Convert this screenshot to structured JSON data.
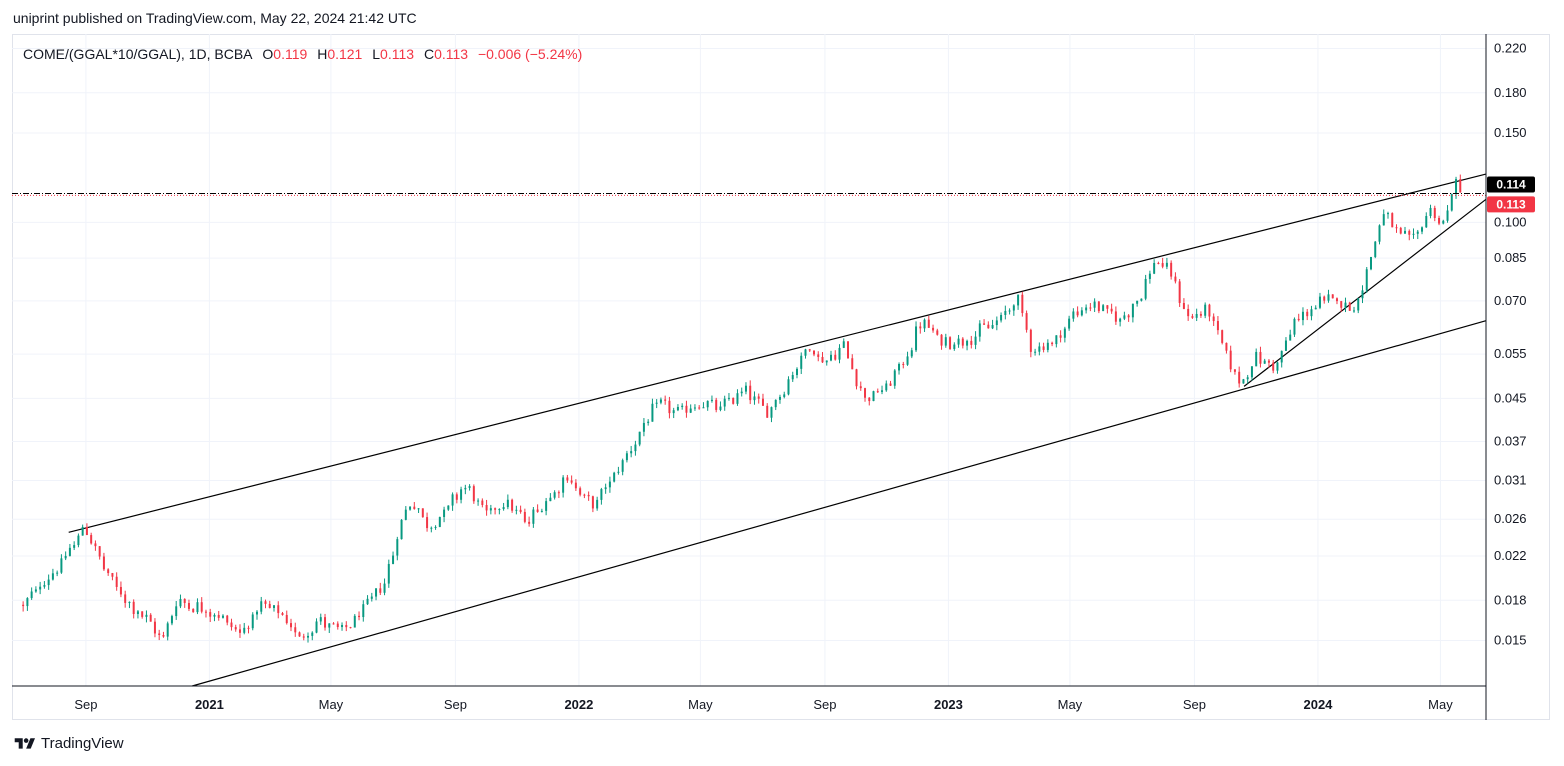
{
  "header": {
    "text": "uniprint published on TradingView.com, May 22, 2024 21:42 UTC"
  },
  "legend": {
    "symbol": "COME/(GGAL*10/GGAL), 1D, BCBA",
    "o_label": "O",
    "o_value": "0.119",
    "h_label": "H",
    "h_value": "0.121",
    "l_label": "L",
    "l_value": "0.113",
    "c_label": "C",
    "c_value": "0.113",
    "change": "−0.006 (−5.24%)"
  },
  "footer": {
    "brand": "TradingView"
  },
  "colors": {
    "up": "#089981",
    "down": "#f23645",
    "grid": "#f0f3fa",
    "line": "#000000"
  },
  "chart_data": {
    "type": "candlestick",
    "y_scale": "log",
    "ylim": [
      0.0122,
      0.235
    ],
    "y_ticks": [
      0.015,
      0.018,
      0.022,
      0.026,
      0.031,
      0.037,
      0.045,
      0.055,
      0.07,
      0.085,
      0.1,
      0.15,
      0.18,
      0.22
    ],
    "y_tick_labels": [
      "0.015",
      "0.018",
      "0.022",
      "0.026",
      "0.031",
      "0.037",
      "0.045",
      "0.055",
      "0.070",
      "0.085",
      "0.100",
      "0.150",
      "0.180",
      "0.220"
    ],
    "x_range": [
      "2020-06-20",
      "2024-06-15"
    ],
    "x_ticks": [
      {
        "label": "Sep",
        "date": "2020-09-01",
        "year": false
      },
      {
        "label": "2021",
        "date": "2021-01-01",
        "year": true
      },
      {
        "label": "May",
        "date": "2021-05-01",
        "year": false
      },
      {
        "label": "Sep",
        "date": "2021-09-01",
        "year": false
      },
      {
        "label": "2022",
        "date": "2022-01-01",
        "year": true
      },
      {
        "label": "May",
        "date": "2022-05-01",
        "year": false
      },
      {
        "label": "Sep",
        "date": "2022-09-01",
        "year": false
      },
      {
        "label": "2023",
        "date": "2023-01-01",
        "year": true
      },
      {
        "label": "May",
        "date": "2023-05-01",
        "year": false
      },
      {
        "label": "Sep",
        "date": "2023-09-01",
        "year": false
      },
      {
        "label": "2024",
        "date": "2024-01-01",
        "year": true
      },
      {
        "label": "May",
        "date": "2024-05-01",
        "year": false
      }
    ],
    "price_path": [
      [
        "2020-07-01",
        0.0175
      ],
      [
        "2020-07-20",
        0.0195
      ],
      [
        "2020-08-10",
        0.0215
      ],
      [
        "2020-08-31",
        0.0253
      ],
      [
        "2020-09-20",
        0.0205
      ],
      [
        "2020-10-10",
        0.018
      ],
      [
        "2020-10-31",
        0.0165
      ],
      [
        "2020-11-15",
        0.015
      ],
      [
        "2020-11-30",
        0.018
      ],
      [
        "2020-12-20",
        0.0175
      ],
      [
        "2021-01-10",
        0.0168
      ],
      [
        "2021-02-01",
        0.0155
      ],
      [
        "2021-02-20",
        0.0175
      ],
      [
        "2021-03-10",
        0.017
      ],
      [
        "2021-03-31",
        0.0152
      ],
      [
        "2021-04-20",
        0.0165
      ],
      [
        "2021-05-10",
        0.0155
      ],
      [
        "2021-06-01",
        0.017
      ],
      [
        "2021-06-25",
        0.02
      ],
      [
        "2021-07-10",
        0.026
      ],
      [
        "2021-07-20",
        0.0285
      ],
      [
        "2021-08-05",
        0.025
      ],
      [
        "2021-08-25",
        0.0275
      ],
      [
        "2021-09-10",
        0.0305
      ],
      [
        "2021-10-01",
        0.0265
      ],
      [
        "2021-10-20",
        0.0285
      ],
      [
        "2021-11-10",
        0.0255
      ],
      [
        "2021-11-30",
        0.0285
      ],
      [
        "2021-12-20",
        0.0315
      ],
      [
        "2022-01-15",
        0.0275
      ],
      [
        "2022-02-01",
        0.031
      ],
      [
        "2022-02-25",
        0.037
      ],
      [
        "2022-03-20",
        0.044
      ],
      [
        "2022-04-10",
        0.042
      ],
      [
        "2022-04-30",
        0.044
      ],
      [
        "2022-05-20",
        0.043
      ],
      [
        "2022-06-15",
        0.047
      ],
      [
        "2022-07-05",
        0.042
      ],
      [
        "2022-07-25",
        0.048
      ],
      [
        "2022-08-15",
        0.057
      ],
      [
        "2022-09-01",
        0.053
      ],
      [
        "2022-09-20",
        0.057
      ],
      [
        "2022-10-10",
        0.045
      ],
      [
        "2022-10-31",
        0.047
      ],
      [
        "2022-11-20",
        0.054
      ],
      [
        "2022-12-05",
        0.064
      ],
      [
        "2022-12-25",
        0.058
      ],
      [
        "2023-01-20",
        0.059
      ],
      [
        "2023-02-20",
        0.064
      ],
      [
        "2023-03-10",
        0.071
      ],
      [
        "2023-03-25",
        0.056
      ],
      [
        "2023-04-15",
        0.058
      ],
      [
        "2023-05-05",
        0.066
      ],
      [
        "2023-05-25",
        0.069
      ],
      [
        "2023-06-20",
        0.064
      ],
      [
        "2023-07-10",
        0.072
      ],
      [
        "2023-07-25",
        0.085
      ],
      [
        "2023-08-10",
        0.078
      ],
      [
        "2023-08-25",
        0.065
      ],
      [
        "2023-09-15",
        0.067
      ],
      [
        "2023-10-01",
        0.056
      ],
      [
        "2023-10-15",
        0.048
      ],
      [
        "2023-10-31",
        0.054
      ],
      [
        "2023-11-20",
        0.052
      ],
      [
        "2023-12-10",
        0.064
      ],
      [
        "2024-01-01",
        0.069
      ],
      [
        "2024-01-20",
        0.071
      ],
      [
        "2024-02-05",
        0.067
      ],
      [
        "2024-02-20",
        0.082
      ],
      [
        "2024-03-05",
        0.105
      ],
      [
        "2024-03-20",
        0.094
      ],
      [
        "2024-04-05",
        0.092
      ],
      [
        "2024-04-20",
        0.107
      ],
      [
        "2024-05-05",
        0.098
      ],
      [
        "2024-05-15",
        0.122
      ],
      [
        "2024-05-22",
        0.113
      ]
    ],
    "trendlines": [
      {
        "name": "channel-upper",
        "from": [
          "2020-08-15",
          0.0245
        ],
        "to": [
          "2024-06-15",
          0.1245
        ]
      },
      {
        "name": "channel-lower",
        "from": [
          "2020-12-15",
          0.0122
        ],
        "to": [
          "2024-06-15",
          0.064
        ]
      },
      {
        "name": "support-rising",
        "from": [
          "2023-10-20",
          0.0475
        ],
        "to": [
          "2024-06-15",
          0.111
        ]
      }
    ],
    "horizontal_lines": [
      {
        "value": 0.114,
        "style": "dash-dot",
        "color": "#000000"
      },
      {
        "value": 0.113,
        "style": "dotted",
        "color": "#f23645"
      }
    ],
    "price_labels": [
      {
        "text": "0.114",
        "value": 0.114,
        "bg": "#000000"
      },
      {
        "text": "0.113",
        "value": 0.113,
        "bg": "#f23645"
      }
    ],
    "last_close": 0.113
  }
}
